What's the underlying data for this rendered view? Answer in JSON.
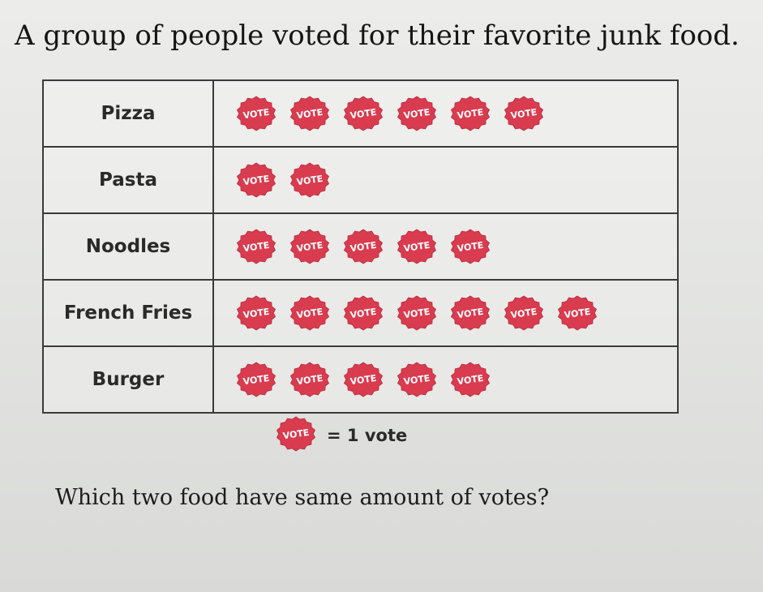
{
  "title": "A group of people voted for their favorite junk food.",
  "question": "Which two food have same amount of votes?",
  "icon": {
    "name": "vote-badge-icon",
    "label": "VOTE",
    "fill": "#d93b4f",
    "text_color": "#ffffff"
  },
  "key": {
    "text": "= 1 vote"
  },
  "chart_data": {
    "type": "table",
    "title": "A group of people voted for their favorite junk food.",
    "categories": [
      "Pizza",
      "Pasta",
      "Noodles",
      "French Fries",
      "Burger"
    ],
    "values": [
      6,
      2,
      5,
      7,
      5
    ],
    "units": "votes",
    "key": "1 icon = 1 vote",
    "xlabel": "",
    "ylabel": ""
  }
}
